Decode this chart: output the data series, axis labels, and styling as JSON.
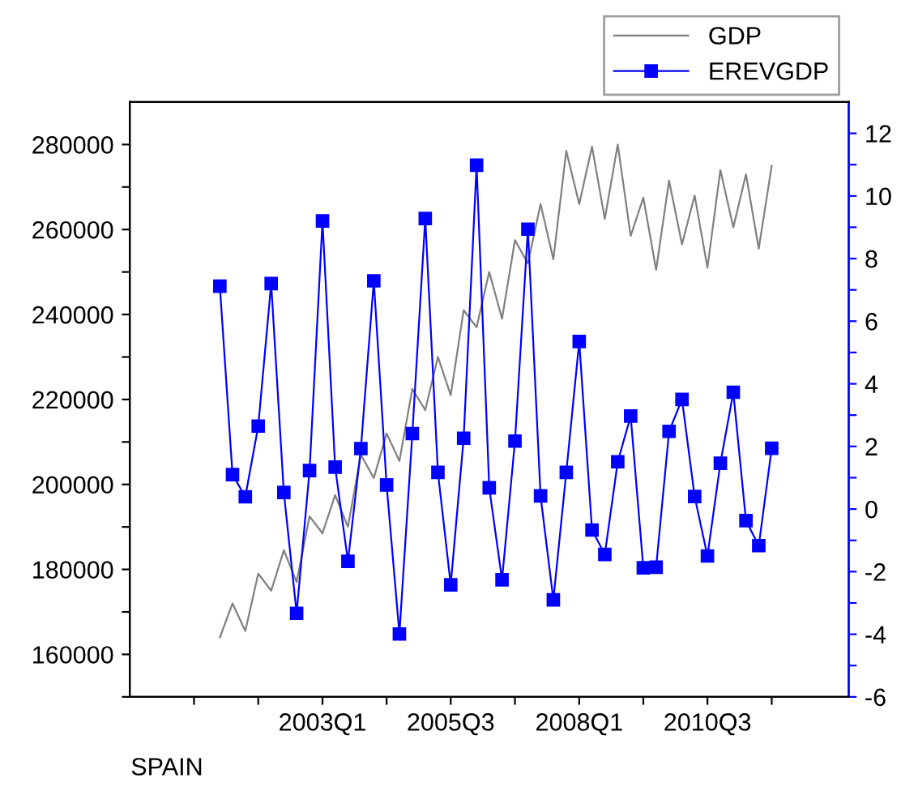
{
  "chart_data": {
    "type": "line",
    "annotations": [
      "SPAIN"
    ],
    "legend": "top right",
    "grid": false,
    "x": [
      "2001-01",
      "2001-04",
      "2001-07",
      "2001-10",
      "2002-01",
      "2002-04",
      "2002-07",
      "2002-10",
      "2003-01",
      "2003-04",
      "2003-07",
      "2003-10",
      "2004-01",
      "2004-04",
      "2004-07",
      "2004-10",
      "2005-01",
      "2005-04",
      "2005-07",
      "2005-10",
      "2006-01",
      "2006-04",
      "2006-07",
      "2006-10",
      "2007-01",
      "2007-04",
      "2007-07",
      "2007-10",
      "2008-01",
      "2008-04",
      "2008-07",
      "2008-10",
      "2009-01",
      "2009-04",
      "2009-07",
      "2009-10",
      "2010-01",
      "2010-04",
      "2010-07",
      "2010-10",
      "2011-01",
      "2011-04",
      "2011-07",
      "2011-10"
    ],
    "xlim": [
      "1999-04",
      "2013-04"
    ],
    "xticks": [
      {
        "value": "2000-07",
        "label": null
      },
      {
        "value": "2001-10",
        "label": null
      },
      {
        "value": "2003-01",
        "label": "2003Q1"
      },
      {
        "value": "2004-04",
        "label": null
      },
      {
        "value": "2005-07",
        "label": "2005Q3"
      },
      {
        "value": "2006-10",
        "label": null
      },
      {
        "value": "2008-01",
        "label": "2008Q1"
      },
      {
        "value": "2009-04",
        "label": null
      },
      {
        "value": "2010-07",
        "label": "2010Q3"
      },
      {
        "value": "2011-10",
        "label": null
      }
    ],
    "ylim": [
      150000,
      290000
    ],
    "yticks": [
      {
        "value": 150000,
        "label": null
      },
      160000,
      {
        "value": 170000,
        "label": null
      },
      180000,
      {
        "value": 190000,
        "label": null
      },
      200000,
      {
        "value": 210000,
        "label": null
      },
      220000,
      {
        "value": 230000,
        "label": null
      },
      240000,
      {
        "value": 250000,
        "label": null
      },
      260000,
      {
        "value": 270000,
        "label": null
      },
      280000
    ],
    "y2lim": [
      -6,
      13
    ],
    "y2ticks": [
      -6,
      {
        "value": -5,
        "label": null
      },
      -4,
      {
        "value": -3,
        "label": null
      },
      -2,
      {
        "value": -1,
        "label": null
      },
      0,
      {
        "value": 1,
        "label": null
      },
      2,
      {
        "value": 3,
        "label": null
      },
      4,
      {
        "value": 5,
        "label": null
      },
      6,
      {
        "value": 7,
        "label": null
      },
      8,
      {
        "value": 9,
        "label": null
      },
      10,
      {
        "value": 11,
        "label": null
      },
      12
    ],
    "series": [
      {
        "name": "GDP",
        "color": "#808080",
        "marker": "none",
        "values": [
          164000,
          172000,
          165500,
          179000,
          175000,
          184500,
          177000,
          192500,
          188500,
          197500,
          190000,
          207000,
          201500,
          212000,
          205500,
          222500,
          217500,
          230000,
          221000,
          241000,
          237000,
          250000,
          239000,
          257500,
          252000,
          266000,
          253000,
          278500,
          266000,
          279500,
          262500,
          280000,
          258500,
          267500,
          250500,
          271500,
          256500,
          268000,
          251000,
          274000,
          260500,
          273000,
          255500,
          275000
        ]
      },
      {
        "name": "EREVGDP",
        "color": "#0000ff",
        "marker": "square",
        "axis": "y2",
        "values": [
          7.12,
          1.1,
          0.39,
          2.65,
          7.2,
          0.53,
          -3.33,
          1.23,
          9.2,
          1.34,
          -1.67,
          1.93,
          7.29,
          0.77,
          -3.99,
          2.41,
          9.28,
          1.17,
          -2.42,
          2.26,
          10.98,
          0.68,
          -2.26,
          2.17,
          8.94,
          0.42,
          -2.9,
          1.17,
          5.35,
          -0.67,
          -1.45,
          1.51,
          2.97,
          -1.88,
          -1.86,
          2.48,
          3.5,
          0.4,
          -1.5,
          1.46,
          3.73,
          -0.37,
          -1.17,
          1.94
        ]
      }
    ]
  }
}
